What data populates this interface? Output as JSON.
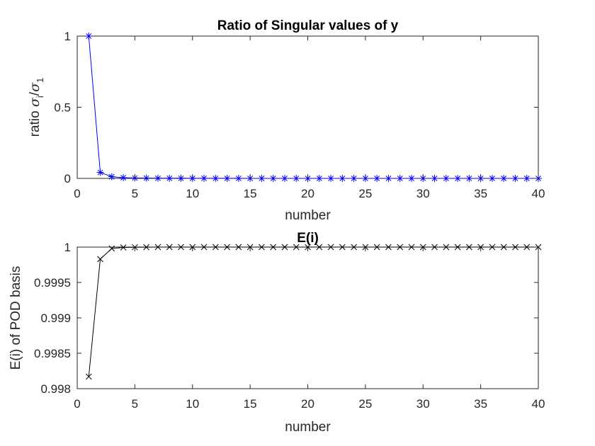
{
  "chart_data": [
    {
      "type": "line",
      "title": "Ratio of Singular values of y",
      "xlabel": "number",
      "ylabel": {
        "prefix": "ratio ",
        "num_symbol": "σ",
        "num_sub": "i",
        "sep": "/",
        "den_symbol": "σ",
        "den_sub": "1"
      },
      "xlim": [
        0,
        40
      ],
      "ylim": [
        0,
        1
      ],
      "xticks": [
        "0",
        "5",
        "10",
        "15",
        "20",
        "25",
        "30",
        "35",
        "40"
      ],
      "yticks": [
        "0",
        "0.5",
        "1"
      ],
      "ytick_values": [
        0,
        0.5,
        1
      ],
      "grid": false,
      "marker": "asterisk",
      "color": "#0000ff",
      "series": [
        {
          "x": [
            1,
            2,
            3,
            4,
            5,
            6,
            7,
            8,
            9,
            10,
            11,
            12,
            13,
            14,
            15,
            16,
            17,
            18,
            19,
            20,
            21,
            22,
            23,
            24,
            25,
            26,
            27,
            28,
            29,
            30,
            31,
            32,
            33,
            34,
            35,
            36,
            37,
            38,
            39,
            40
          ],
          "values": [
            1,
            0.042,
            0.012,
            0.005,
            0.003,
            0.002,
            0.0015,
            0.001,
            0.001,
            0.0008,
            0.0006,
            0.0005,
            0.0004,
            0.0004,
            0.0003,
            0.0003,
            0.0002,
            0.0002,
            0.0002,
            0.0002,
            0.0001,
            0.0001,
            0.0001,
            0.0001,
            0.0001,
            0.0001,
            0.0001,
            0.0001,
            0.0001,
            0.0001,
            0.0001,
            0.0001,
            0.0001,
            0.0001,
            0.0001,
            0.0001,
            0.0001,
            0.0001,
            0.0001,
            0.0001
          ]
        }
      ]
    },
    {
      "type": "line",
      "title": "E(i)",
      "xlabel": "number",
      "ylabel": "E(i) of POD basis",
      "xlim": [
        0,
        40
      ],
      "ylim": [
        0.998,
        1
      ],
      "xticks": [
        "0",
        "5",
        "10",
        "15",
        "20",
        "25",
        "30",
        "35",
        "40"
      ],
      "yticks": [
        "0.998",
        "0.9985",
        "0.999",
        "0.9995",
        "1"
      ],
      "ytick_values": [
        0.998,
        0.9985,
        0.999,
        0.9995,
        1
      ],
      "grid": false,
      "marker": "x",
      "color": "#000000",
      "series": [
        {
          "x": [
            1,
            2,
            3,
            4,
            5,
            6,
            7,
            8,
            9,
            10,
            11,
            12,
            13,
            14,
            15,
            16,
            17,
            18,
            19,
            20,
            21,
            22,
            23,
            24,
            25,
            26,
            27,
            28,
            29,
            30,
            31,
            32,
            33,
            34,
            35,
            36,
            37,
            38,
            39,
            40
          ],
          "values": [
            0.99817,
            0.99983,
            0.99998,
            0.999995,
            0.999998,
            0.999999,
            1,
            1,
            1,
            1,
            1,
            1,
            1,
            1,
            1,
            1,
            1,
            1,
            1,
            1,
            1,
            1,
            1,
            1,
            1,
            1,
            1,
            1,
            1,
            1,
            1,
            1,
            1,
            1,
            1,
            1,
            1,
            1,
            1,
            1
          ]
        }
      ]
    }
  ]
}
